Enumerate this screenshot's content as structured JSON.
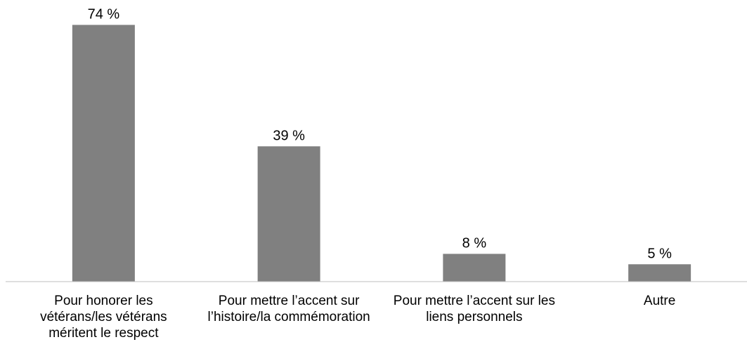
{
  "chart_data": {
    "type": "bar",
    "categories": [
      [
        "Pour honorer les",
        "vétérans/les vétérans",
        "méritent le respect"
      ],
      [
        "Pour mettre l’accent sur",
        "l’histoire/la commémoration"
      ],
      [
        "Pour mettre l’accent sur les",
        "liens personnels"
      ],
      [
        "Autre"
      ]
    ],
    "values": [
      74,
      39,
      8,
      5
    ],
    "data_labels": [
      "74 %",
      "39 %",
      "8 %",
      "5 %"
    ],
    "title": "",
    "xlabel": "",
    "ylabel": "",
    "ylim": [
      0,
      80
    ],
    "grid": false,
    "legend": "none",
    "bar_color": "#808080",
    "axis_color": "#bfbfbf"
  }
}
